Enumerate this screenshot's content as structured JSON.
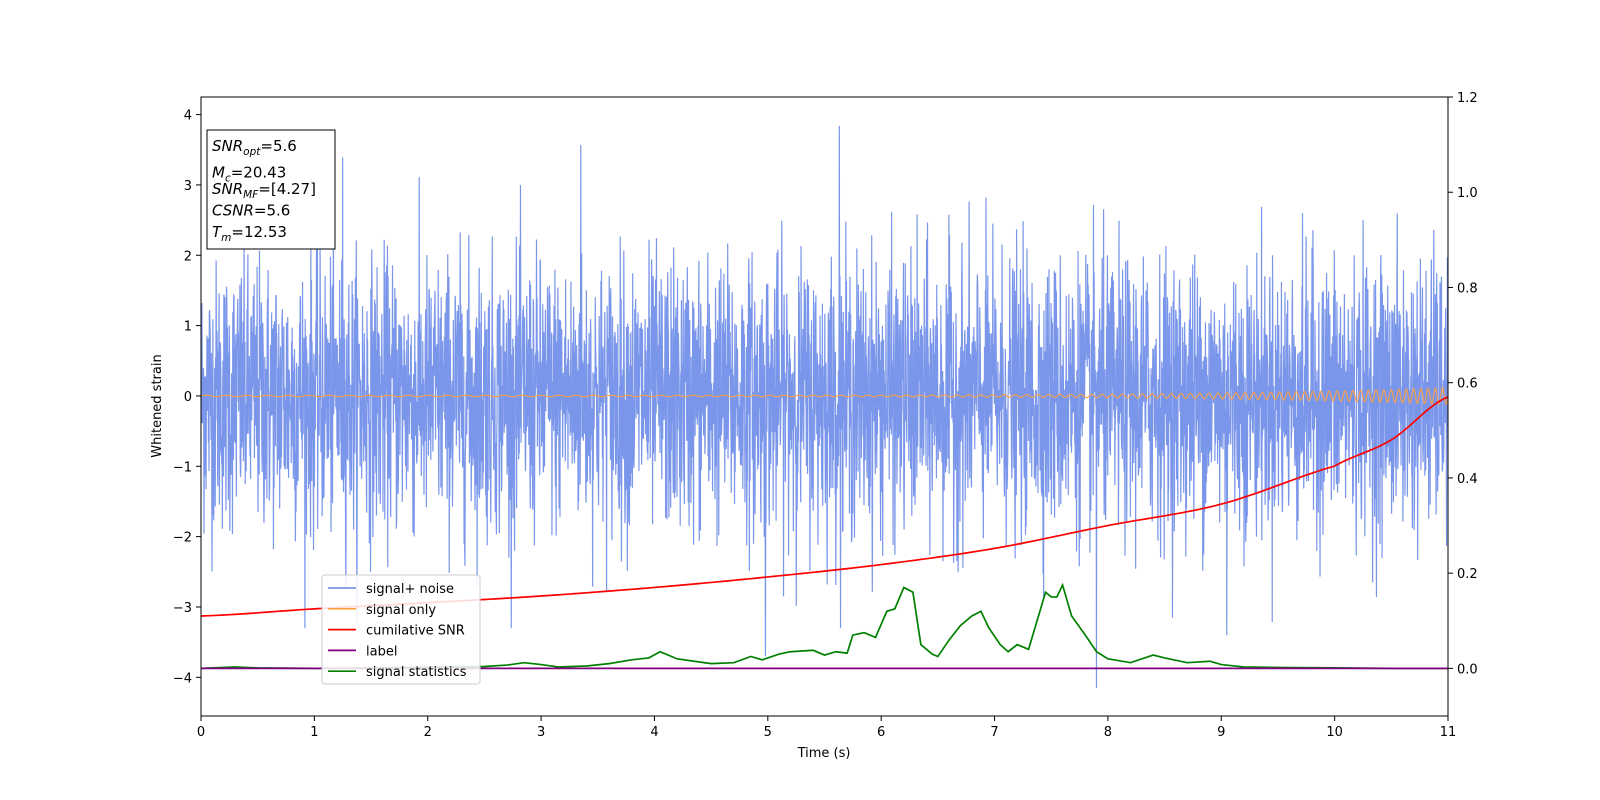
{
  "chart_data": {
    "type": "line",
    "xlabel": "Time (s)",
    "ylabel": "Whitened strain",
    "xlim": [
      0,
      11
    ],
    "ylim_left": [
      -4.55,
      4.25
    ],
    "ylim_right": [
      -0.1,
      1.2
    ],
    "x_ticks": [
      "0",
      "1",
      "2",
      "3",
      "4",
      "5",
      "6",
      "7",
      "8",
      "9",
      "10",
      "11"
    ],
    "y_ticks_left": [
      "−4",
      "−3",
      "−2",
      "−1",
      "0",
      "1",
      "2",
      "3",
      "4"
    ],
    "y_ticks_right": [
      "0.0",
      "0.2",
      "0.4",
      "0.6",
      "0.8",
      "1.0",
      "1.2"
    ],
    "grid": false,
    "legend_placement": "lower-left",
    "info_box": {
      "placement": "upper-left",
      "lines": [
        {
          "base": "SNR",
          "sub": "opt",
          "value": "=5.6"
        },
        {
          "base": "M",
          "sub": "c",
          "value": "=20.43"
        },
        {
          "base": "SNR",
          "sub": "MF",
          "value": "=[4.27]"
        },
        {
          "base": "CSNR",
          "sub": "",
          "value": "=5.6"
        },
        {
          "base": "T",
          "sub": "m",
          "value": "=12.53"
        }
      ]
    },
    "series": [
      {
        "name": "signal+ noise",
        "axis": "left",
        "color": "#4169e1",
        "opacity": 0.7,
        "description": "whitened noisy strain, typical range about -3.0 to 3.0 with peaks near 3.8 at t=5.63 and -4.15 at t=7.9",
        "noise_std": 0.95,
        "peaks": [
          [
            5.63,
            3.84
          ],
          [
            3.35,
            3.57
          ],
          [
            1.25,
            3.39
          ],
          [
            7.9,
            -4.15
          ],
          [
            4.98,
            -3.7
          ],
          [
            9.05,
            -3.4
          ]
        ]
      },
      {
        "name": "signal only",
        "axis": "left",
        "color": "#ffa040",
        "type": "chirp",
        "amplitude_start": 0.01,
        "amplitude_end": 0.12,
        "frequency_start": 5.5,
        "frequency_end": 16
      },
      {
        "name": "cumilative SNR",
        "axis": "right",
        "color": "#ff0000",
        "x": [
          0,
          1,
          2,
          3,
          4,
          5,
          6,
          7,
          8,
          9,
          10,
          10.5,
          11
        ],
        "values": [
          0.11,
          0.125,
          0.138,
          0.152,
          0.17,
          0.192,
          0.218,
          0.252,
          0.3,
          0.345,
          0.425,
          0.48,
          0.57
        ]
      },
      {
        "name": "label",
        "axis": "right",
        "color": "#800080",
        "x": [
          0,
          11
        ],
        "values": [
          0.0,
          0.0
        ]
      },
      {
        "name": "signal statistics",
        "axis": "right",
        "color": "#008000",
        "x": [
          0,
          0.3,
          0.5,
          1,
          1.5,
          2,
          2.5,
          2.7,
          2.85,
          3,
          3.15,
          3.4,
          3.6,
          3.8,
          3.95,
          4.05,
          4.2,
          4.35,
          4.5,
          4.7,
          4.85,
          4.95,
          5.1,
          5.2,
          5.4,
          5.5,
          5.6,
          5.7,
          5.75,
          5.85,
          5.95,
          6.05,
          6.12,
          6.2,
          6.28,
          6.35,
          6.45,
          6.5,
          6.6,
          6.7,
          6.8,
          6.88,
          6.95,
          7.05,
          7.12,
          7.2,
          7.3,
          7.4,
          7.45,
          7.5,
          7.55,
          7.6,
          7.68,
          7.8,
          7.9,
          8,
          8.2,
          8.4,
          8.5,
          8.7,
          8.9,
          9,
          9.2,
          9.5,
          10,
          10.5,
          11
        ],
        "values": [
          0.0,
          0.003,
          0.001,
          0.0,
          0.001,
          0.003,
          0.004,
          0.007,
          0.012,
          0.008,
          0.003,
          0.005,
          0.01,
          0.018,
          0.022,
          0.035,
          0.02,
          0.015,
          0.01,
          0.012,
          0.025,
          0.018,
          0.03,
          0.035,
          0.038,
          0.028,
          0.035,
          0.032,
          0.07,
          0.075,
          0.065,
          0.12,
          0.125,
          0.17,
          0.16,
          0.05,
          0.03,
          0.025,
          0.06,
          0.09,
          0.11,
          0.12,
          0.085,
          0.05,
          0.035,
          0.05,
          0.04,
          0.12,
          0.16,
          0.15,
          0.15,
          0.175,
          0.11,
          0.07,
          0.035,
          0.02,
          0.012,
          0.028,
          0.022,
          0.012,
          0.015,
          0.008,
          0.003,
          0.002,
          0.001,
          0.0,
          0.0
        ]
      }
    ]
  }
}
